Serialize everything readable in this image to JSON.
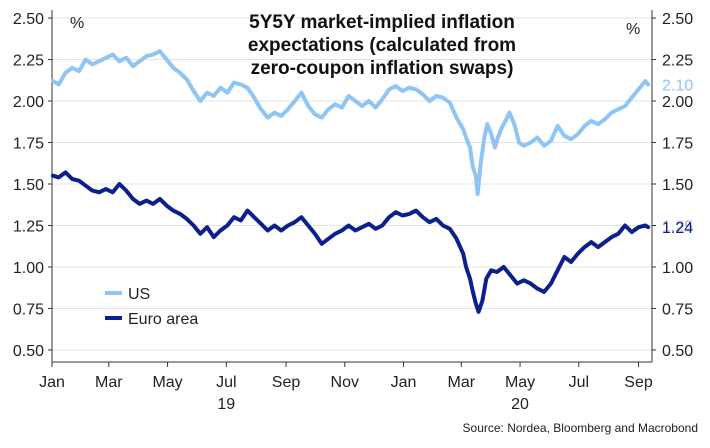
{
  "chart_data": {
    "type": "line",
    "title_lines": [
      "5Y5Y market-implied inflation",
      "expectations (calculated from",
      "zero-coupon inflation swaps)"
    ],
    "left_unit": "%",
    "right_unit": "%",
    "ylim": [
      0.5,
      2.5
    ],
    "yticks": [
      "0.50",
      "0.75",
      "1.00",
      "1.25",
      "1.50",
      "1.75",
      "2.00",
      "2.25",
      "2.50"
    ],
    "xlim": [
      "2019-01-01",
      "2020-09-15"
    ],
    "xticks": [
      {
        "label": "Jan",
        "date": "2019-01-01"
      },
      {
        "label": "Mar",
        "date": "2019-03-01"
      },
      {
        "label": "May",
        "date": "2019-05-01"
      },
      {
        "label": "Jul",
        "date": "2019-07-01"
      },
      {
        "label": "Sep",
        "date": "2019-09-01"
      },
      {
        "label": "Nov",
        "date": "2019-11-01"
      },
      {
        "label": "Jan",
        "date": "2020-01-01"
      },
      {
        "label": "Mar",
        "date": "2020-03-01"
      },
      {
        "label": "May",
        "date": "2020-05-01"
      },
      {
        "label": "Jul",
        "date": "2020-07-01"
      },
      {
        "label": "Sep",
        "date": "2020-09-01"
      }
    ],
    "year_labels": [
      {
        "label": "19",
        "date": "2019-07-01"
      },
      {
        "label": "20",
        "date": "2020-05-01"
      }
    ],
    "grid": "horizontal",
    "legend_position": "bottom-left",
    "series": [
      {
        "name": "US",
        "color": "#8ec5f5",
        "end_label": "2.10",
        "points": [
          [
            "2019-01-02",
            2.12
          ],
          [
            "2019-01-08",
            2.1
          ],
          [
            "2019-01-15",
            2.17
          ],
          [
            "2019-01-22",
            2.2
          ],
          [
            "2019-01-29",
            2.18
          ],
          [
            "2019-02-05",
            2.25
          ],
          [
            "2019-02-12",
            2.22
          ],
          [
            "2019-02-19",
            2.24
          ],
          [
            "2019-02-26",
            2.26
          ],
          [
            "2019-03-05",
            2.28
          ],
          [
            "2019-03-12",
            2.24
          ],
          [
            "2019-03-19",
            2.26
          ],
          [
            "2019-03-26",
            2.21
          ],
          [
            "2019-04-02",
            2.24
          ],
          [
            "2019-04-09",
            2.27
          ],
          [
            "2019-04-16",
            2.28
          ],
          [
            "2019-04-23",
            2.3
          ],
          [
            "2019-04-30",
            2.25
          ],
          [
            "2019-05-07",
            2.2
          ],
          [
            "2019-05-14",
            2.17
          ],
          [
            "2019-05-21",
            2.13
          ],
          [
            "2019-05-28",
            2.06
          ],
          [
            "2019-06-04",
            2.0
          ],
          [
            "2019-06-11",
            2.05
          ],
          [
            "2019-06-18",
            2.03
          ],
          [
            "2019-06-25",
            2.08
          ],
          [
            "2019-07-02",
            2.05
          ],
          [
            "2019-07-09",
            2.11
          ],
          [
            "2019-07-16",
            2.1
          ],
          [
            "2019-07-23",
            2.08
          ],
          [
            "2019-07-30",
            2.02
          ],
          [
            "2019-08-06",
            1.95
          ],
          [
            "2019-08-13",
            1.9
          ],
          [
            "2019-08-20",
            1.93
          ],
          [
            "2019-08-27",
            1.91
          ],
          [
            "2019-09-03",
            1.95
          ],
          [
            "2019-09-10",
            2.0
          ],
          [
            "2019-09-17",
            2.05
          ],
          [
            "2019-09-24",
            1.97
          ],
          [
            "2019-10-01",
            1.92
          ],
          [
            "2019-10-08",
            1.9
          ],
          [
            "2019-10-15",
            1.95
          ],
          [
            "2019-10-22",
            1.98
          ],
          [
            "2019-10-29",
            1.96
          ],
          [
            "2019-11-05",
            2.03
          ],
          [
            "2019-11-12",
            2.0
          ],
          [
            "2019-11-19",
            1.97
          ],
          [
            "2019-11-26",
            2.0
          ],
          [
            "2019-12-03",
            1.96
          ],
          [
            "2019-12-10",
            2.01
          ],
          [
            "2019-12-17",
            2.07
          ],
          [
            "2019-12-24",
            2.09
          ],
          [
            "2019-12-31",
            2.06
          ],
          [
            "2020-01-07",
            2.08
          ],
          [
            "2020-01-14",
            2.07
          ],
          [
            "2020-01-21",
            2.04
          ],
          [
            "2020-01-28",
            2.0
          ],
          [
            "2020-02-04",
            2.03
          ],
          [
            "2020-02-11",
            2.02
          ],
          [
            "2020-02-18",
            1.99
          ],
          [
            "2020-02-25",
            1.9
          ],
          [
            "2020-03-03",
            1.83
          ],
          [
            "2020-03-06",
            1.78
          ],
          [
            "2020-03-10",
            1.72
          ],
          [
            "2020-03-13",
            1.6
          ],
          [
            "2020-03-16",
            1.55
          ],
          [
            "2020-03-18",
            1.44
          ],
          [
            "2020-03-21",
            1.62
          ],
          [
            "2020-03-25",
            1.78
          ],
          [
            "2020-03-28",
            1.86
          ],
          [
            "2020-04-01",
            1.8
          ],
          [
            "2020-04-05",
            1.72
          ],
          [
            "2020-04-08",
            1.78
          ],
          [
            "2020-04-12",
            1.84
          ],
          [
            "2020-04-16",
            1.88
          ],
          [
            "2020-04-20",
            1.93
          ],
          [
            "2020-04-25",
            1.86
          ],
          [
            "2020-04-30",
            1.75
          ],
          [
            "2020-05-05",
            1.73
          ],
          [
            "2020-05-12",
            1.75
          ],
          [
            "2020-05-19",
            1.78
          ],
          [
            "2020-05-26",
            1.73
          ],
          [
            "2020-06-02",
            1.76
          ],
          [
            "2020-06-09",
            1.85
          ],
          [
            "2020-06-16",
            1.79
          ],
          [
            "2020-06-23",
            1.77
          ],
          [
            "2020-06-30",
            1.8
          ],
          [
            "2020-07-07",
            1.85
          ],
          [
            "2020-07-14",
            1.88
          ],
          [
            "2020-07-21",
            1.86
          ],
          [
            "2020-07-28",
            1.89
          ],
          [
            "2020-08-04",
            1.93
          ],
          [
            "2020-08-11",
            1.95
          ],
          [
            "2020-08-18",
            1.97
          ],
          [
            "2020-08-25",
            2.02
          ],
          [
            "2020-09-01",
            2.07
          ],
          [
            "2020-09-08",
            2.12
          ],
          [
            "2020-09-11",
            2.1
          ]
        ]
      },
      {
        "name": "Euro area",
        "color": "#0b1f8f",
        "end_label": "1.24",
        "points": [
          [
            "2019-01-02",
            1.55
          ],
          [
            "2019-01-08",
            1.54
          ],
          [
            "2019-01-15",
            1.57
          ],
          [
            "2019-01-22",
            1.53
          ],
          [
            "2019-01-29",
            1.52
          ],
          [
            "2019-02-05",
            1.49
          ],
          [
            "2019-02-12",
            1.46
          ],
          [
            "2019-02-19",
            1.45
          ],
          [
            "2019-02-26",
            1.47
          ],
          [
            "2019-03-05",
            1.45
          ],
          [
            "2019-03-12",
            1.5
          ],
          [
            "2019-03-19",
            1.46
          ],
          [
            "2019-03-26",
            1.41
          ],
          [
            "2019-04-02",
            1.38
          ],
          [
            "2019-04-09",
            1.4
          ],
          [
            "2019-04-16",
            1.38
          ],
          [
            "2019-04-23",
            1.41
          ],
          [
            "2019-04-30",
            1.37
          ],
          [
            "2019-05-07",
            1.34
          ],
          [
            "2019-05-14",
            1.32
          ],
          [
            "2019-05-21",
            1.29
          ],
          [
            "2019-05-28",
            1.25
          ],
          [
            "2019-06-04",
            1.2
          ],
          [
            "2019-06-11",
            1.24
          ],
          [
            "2019-06-18",
            1.18
          ],
          [
            "2019-06-25",
            1.22
          ],
          [
            "2019-07-02",
            1.25
          ],
          [
            "2019-07-09",
            1.3
          ],
          [
            "2019-07-16",
            1.28
          ],
          [
            "2019-07-23",
            1.34
          ],
          [
            "2019-07-30",
            1.3
          ],
          [
            "2019-08-06",
            1.26
          ],
          [
            "2019-08-13",
            1.22
          ],
          [
            "2019-08-20",
            1.25
          ],
          [
            "2019-08-27",
            1.22
          ],
          [
            "2019-09-03",
            1.25
          ],
          [
            "2019-09-10",
            1.27
          ],
          [
            "2019-09-17",
            1.3
          ],
          [
            "2019-09-24",
            1.25
          ],
          [
            "2019-10-01",
            1.2
          ],
          [
            "2019-10-08",
            1.14
          ],
          [
            "2019-10-15",
            1.17
          ],
          [
            "2019-10-22",
            1.2
          ],
          [
            "2019-10-29",
            1.22
          ],
          [
            "2019-11-05",
            1.25
          ],
          [
            "2019-11-12",
            1.22
          ],
          [
            "2019-11-19",
            1.24
          ],
          [
            "2019-11-26",
            1.26
          ],
          [
            "2019-12-03",
            1.23
          ],
          [
            "2019-12-10",
            1.25
          ],
          [
            "2019-12-17",
            1.3
          ],
          [
            "2019-12-24",
            1.33
          ],
          [
            "2019-12-31",
            1.31
          ],
          [
            "2020-01-07",
            1.32
          ],
          [
            "2020-01-14",
            1.34
          ],
          [
            "2020-01-21",
            1.3
          ],
          [
            "2020-01-28",
            1.27
          ],
          [
            "2020-02-04",
            1.29
          ],
          [
            "2020-02-11",
            1.25
          ],
          [
            "2020-02-18",
            1.23
          ],
          [
            "2020-02-25",
            1.17
          ],
          [
            "2020-03-03",
            1.08
          ],
          [
            "2020-03-06",
            1.0
          ],
          [
            "2020-03-10",
            0.93
          ],
          [
            "2020-03-13",
            0.85
          ],
          [
            "2020-03-16",
            0.78
          ],
          [
            "2020-03-19",
            0.73
          ],
          [
            "2020-03-23",
            0.8
          ],
          [
            "2020-03-27",
            0.93
          ],
          [
            "2020-04-01",
            0.98
          ],
          [
            "2020-04-07",
            0.97
          ],
          [
            "2020-04-14",
            1.0
          ],
          [
            "2020-04-21",
            0.95
          ],
          [
            "2020-04-28",
            0.9
          ],
          [
            "2020-05-05",
            0.92
          ],
          [
            "2020-05-12",
            0.9
          ],
          [
            "2020-05-19",
            0.87
          ],
          [
            "2020-05-26",
            0.85
          ],
          [
            "2020-06-02",
            0.9
          ],
          [
            "2020-06-09",
            0.98
          ],
          [
            "2020-06-16",
            1.06
          ],
          [
            "2020-06-23",
            1.03
          ],
          [
            "2020-06-30",
            1.08
          ],
          [
            "2020-07-07",
            1.12
          ],
          [
            "2020-07-14",
            1.15
          ],
          [
            "2020-07-21",
            1.12
          ],
          [
            "2020-07-28",
            1.15
          ],
          [
            "2020-08-04",
            1.18
          ],
          [
            "2020-08-11",
            1.2
          ],
          [
            "2020-08-18",
            1.25
          ],
          [
            "2020-08-25",
            1.21
          ],
          [
            "2020-09-01",
            1.24
          ],
          [
            "2020-09-08",
            1.25
          ],
          [
            "2020-09-11",
            1.24
          ]
        ]
      }
    ]
  },
  "source": "Source: Nordea, Bloomberg and Macrobond"
}
